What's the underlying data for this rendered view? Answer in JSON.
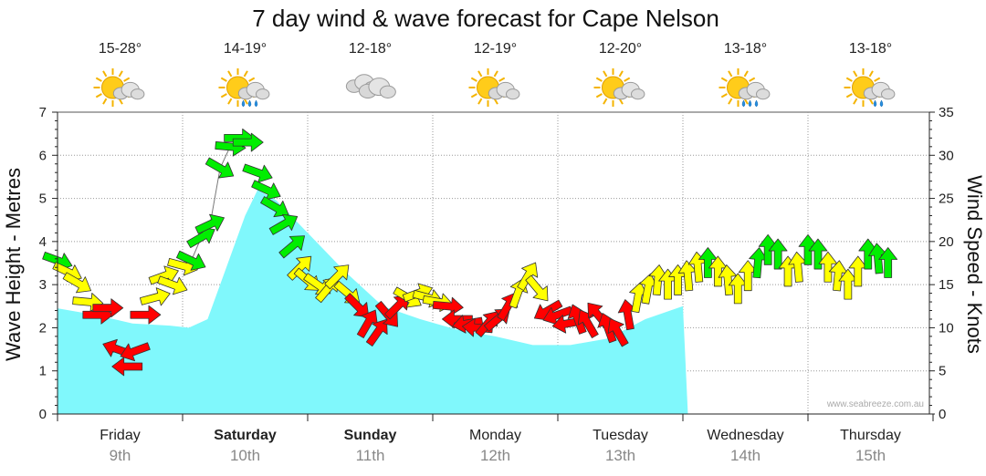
{
  "chart_data": {
    "type": "area",
    "title": "7 day wind & wave forecast for Cape Nelson",
    "ylabel_left": "Wave Height - Metres",
    "ylabel_right": "Wind Speed - Knots",
    "ylim_left": [
      0,
      7
    ],
    "ylim_right": [
      0,
      35
    ],
    "yticks_left": [
      "0",
      "1",
      "2",
      "3",
      "4",
      "5",
      "6",
      "7"
    ],
    "yticks_right": [
      "0",
      "5",
      "10",
      "15",
      "20",
      "25",
      "30",
      "35"
    ],
    "grid": true,
    "days": [
      {
        "name": "Friday",
        "date": "9th",
        "bold": false,
        "temp": "15-28°",
        "icon": "partly-cloudy-icon"
      },
      {
        "name": "Saturday",
        "date": "10th",
        "bold": true,
        "temp": "14-19°",
        "icon": "sun-cloud-rain-icon"
      },
      {
        "name": "Sunday",
        "date": "11th",
        "bold": true,
        "temp": "12-18°",
        "icon": "cloudy-icon"
      },
      {
        "name": "Monday",
        "date": "12th",
        "bold": false,
        "temp": "12-19°",
        "icon": "partly-cloudy-icon"
      },
      {
        "name": "Tuesday",
        "date": "13th",
        "bold": false,
        "temp": "12-20°",
        "icon": "partly-cloudy-icon"
      },
      {
        "name": "Wednesday",
        "date": "14th",
        "bold": false,
        "temp": "13-18°",
        "icon": "sun-cloud-rain-icon"
      },
      {
        "name": "Thursday",
        "date": "15th",
        "bold": false,
        "temp": "13-18°",
        "icon": "sun-cloud-drizzle-icon"
      }
    ],
    "wave_series": {
      "color": "#80f8fc",
      "x_days": [
        0,
        0.3,
        0.6,
        0.9,
        1.05,
        1.2,
        1.35,
        1.5,
        1.6,
        1.75,
        2.0,
        2.3,
        2.6,
        2.9,
        3.2,
        3.5,
        3.8,
        4.1,
        4.4,
        4.7,
        5.0,
        5.04
      ],
      "values": [
        2.45,
        2.3,
        2.1,
        2.05,
        2.0,
        2.2,
        3.4,
        4.6,
        5.2,
        4.95,
        4.2,
        3.3,
        2.5,
        2.2,
        1.95,
        1.8,
        1.6,
        1.6,
        1.75,
        2.2,
        2.5,
        0.0
      ]
    },
    "wind_series": {
      "colors": {
        "light": "#ff0000",
        "moderate": "#ffff00",
        "fresh": "#00ee00"
      },
      "points": [
        {
          "d": 0.0,
          "kts": 17.8,
          "dir": 20
        },
        {
          "d": 0.08,
          "kts": 16.5,
          "dir": 25
        },
        {
          "d": 0.16,
          "kts": 15.2,
          "dir": 30
        },
        {
          "d": 0.24,
          "kts": 13.0,
          "dir": 5
        },
        {
          "d": 0.32,
          "kts": 11.5,
          "dir": 0
        },
        {
          "d": 0.4,
          "kts": 12.3,
          "dir": 0
        },
        {
          "d": 0.48,
          "kts": 7.5,
          "dir": 200
        },
        {
          "d": 0.56,
          "kts": 5.5,
          "dir": 180
        },
        {
          "d": 0.62,
          "kts": 7.3,
          "dir": 160
        },
        {
          "d": 0.7,
          "kts": 11.5,
          "dir": 0
        },
        {
          "d": 0.78,
          "kts": 13.5,
          "dir": -15
        },
        {
          "d": 0.85,
          "kts": 16.0,
          "dir": -20
        },
        {
          "d": 0.92,
          "kts": 15.0,
          "dir": 20
        },
        {
          "d": 1.0,
          "kts": 17.2,
          "dir": 15
        },
        {
          "d": 1.07,
          "kts": 17.8,
          "dir": 25
        },
        {
          "d": 1.15,
          "kts": 20.5,
          "dir": -30
        },
        {
          "d": 1.22,
          "kts": 22.0,
          "dir": -25
        },
        {
          "d": 1.3,
          "kts": 28.5,
          "dir": 30
        },
        {
          "d": 1.38,
          "kts": 31.0,
          "dir": 5
        },
        {
          "d": 1.45,
          "kts": 32.0,
          "dir": 0
        },
        {
          "d": 1.52,
          "kts": 31.5,
          "dir": 0
        },
        {
          "d": 1.6,
          "kts": 28.0,
          "dir": 20
        },
        {
          "d": 1.67,
          "kts": 26.0,
          "dir": 25
        },
        {
          "d": 1.74,
          "kts": 24.0,
          "dir": 30
        },
        {
          "d": 1.81,
          "kts": 22.0,
          "dir": -30
        },
        {
          "d": 1.88,
          "kts": 19.5,
          "dir": -40
        },
        {
          "d": 1.94,
          "kts": 17.0,
          "dir": -45
        },
        {
          "d": 2.0,
          "kts": 15.5,
          "dir": 40
        },
        {
          "d": 2.08,
          "kts": 15.0,
          "dir": 35
        },
        {
          "d": 2.16,
          "kts": 14.5,
          "dir": -50
        },
        {
          "d": 2.24,
          "kts": 16.0,
          "dir": -45
        },
        {
          "d": 2.32,
          "kts": 14.0,
          "dir": 40
        },
        {
          "d": 2.4,
          "kts": 12.5,
          "dir": 45
        },
        {
          "d": 2.48,
          "kts": 10.5,
          "dir": -60
        },
        {
          "d": 2.56,
          "kts": 9.5,
          "dir": -55
        },
        {
          "d": 2.64,
          "kts": 11.5,
          "dir": 50
        },
        {
          "d": 2.72,
          "kts": 12.5,
          "dir": -45
        },
        {
          "d": 2.8,
          "kts": 13.5,
          "dir": 30
        },
        {
          "d": 2.88,
          "kts": 14.0,
          "dir": -20
        },
        {
          "d": 2.96,
          "kts": 13.5,
          "dir": 15
        },
        {
          "d": 3.04,
          "kts": 13.0,
          "dir": 10
        },
        {
          "d": 3.12,
          "kts": 12.5,
          "dir": 5
        },
        {
          "d": 3.2,
          "kts": 11.0,
          "dir": 180
        },
        {
          "d": 3.28,
          "kts": 10.5,
          "dir": 170
        },
        {
          "d": 3.36,
          "kts": 10.0,
          "dir": 185
        },
        {
          "d": 3.44,
          "kts": 10.5,
          "dir": -50
        },
        {
          "d": 3.52,
          "kts": 11.0,
          "dir": -40
        },
        {
          "d": 3.6,
          "kts": 12.5,
          "dir": -60
        },
        {
          "d": 3.68,
          "kts": 14.0,
          "dir": -70
        },
        {
          "d": 3.76,
          "kts": 16.0,
          "dir": -60
        },
        {
          "d": 3.84,
          "kts": 14.5,
          "dir": 50
        },
        {
          "d": 3.92,
          "kts": 12.0,
          "dir": 150
        },
        {
          "d": 4.0,
          "kts": 11.5,
          "dir": 160
        },
        {
          "d": 4.08,
          "kts": 10.5,
          "dir": 170
        },
        {
          "d": 4.16,
          "kts": 11.0,
          "dir": -110
        },
        {
          "d": 4.24,
          "kts": 10.5,
          "dir": -120
        },
        {
          "d": 4.32,
          "kts": 11.5,
          "dir": -130
        },
        {
          "d": 4.4,
          "kts": 10.0,
          "dir": -110
        },
        {
          "d": 4.48,
          "kts": 9.5,
          "dir": -120
        },
        {
          "d": 4.56,
          "kts": 11.5,
          "dir": -100
        },
        {
          "d": 4.64,
          "kts": 13.5,
          "dir": -80
        },
        {
          "d": 4.72,
          "kts": 14.5,
          "dir": -80
        },
        {
          "d": 4.8,
          "kts": 15.5,
          "dir": -85
        },
        {
          "d": 4.88,
          "kts": 15.0,
          "dir": -90
        },
        {
          "d": 4.96,
          "kts": 15.5,
          "dir": -90
        },
        {
          "d": 5.04,
          "kts": 16.0,
          "dir": -95
        },
        {
          "d": 5.12,
          "kts": 17.0,
          "dir": -95
        },
        {
          "d": 5.2,
          "kts": 17.5,
          "dir": -90
        },
        {
          "d": 5.28,
          "kts": 16.5,
          "dir": -90
        },
        {
          "d": 5.36,
          "kts": 15.5,
          "dir": -95
        },
        {
          "d": 5.44,
          "kts": 14.5,
          "dir": -90
        },
        {
          "d": 5.52,
          "kts": 16.0,
          "dir": -90
        },
        {
          "d": 5.6,
          "kts": 17.5,
          "dir": -85
        },
        {
          "d": 5.68,
          "kts": 19.0,
          "dir": -90
        },
        {
          "d": 5.76,
          "kts": 18.5,
          "dir": -90
        },
        {
          "d": 5.84,
          "kts": 16.5,
          "dir": -90
        },
        {
          "d": 5.92,
          "kts": 17.0,
          "dir": -95
        },
        {
          "d": 6.0,
          "kts": 19.0,
          "dir": -90
        },
        {
          "d": 6.08,
          "kts": 18.5,
          "dir": -90
        },
        {
          "d": 6.16,
          "kts": 17.0,
          "dir": -90
        },
        {
          "d": 6.24,
          "kts": 16.0,
          "dir": -85
        },
        {
          "d": 6.32,
          "kts": 15.0,
          "dir": -90
        },
        {
          "d": 6.4,
          "kts": 16.5,
          "dir": -90
        },
        {
          "d": 6.48,
          "kts": 18.5,
          "dir": -90
        },
        {
          "d": 6.56,
          "kts": 18.0,
          "dir": -95
        },
        {
          "d": 6.64,
          "kts": 17.5,
          "dir": -90
        }
      ]
    }
  },
  "watermark": "www.seabreeze.com.au"
}
